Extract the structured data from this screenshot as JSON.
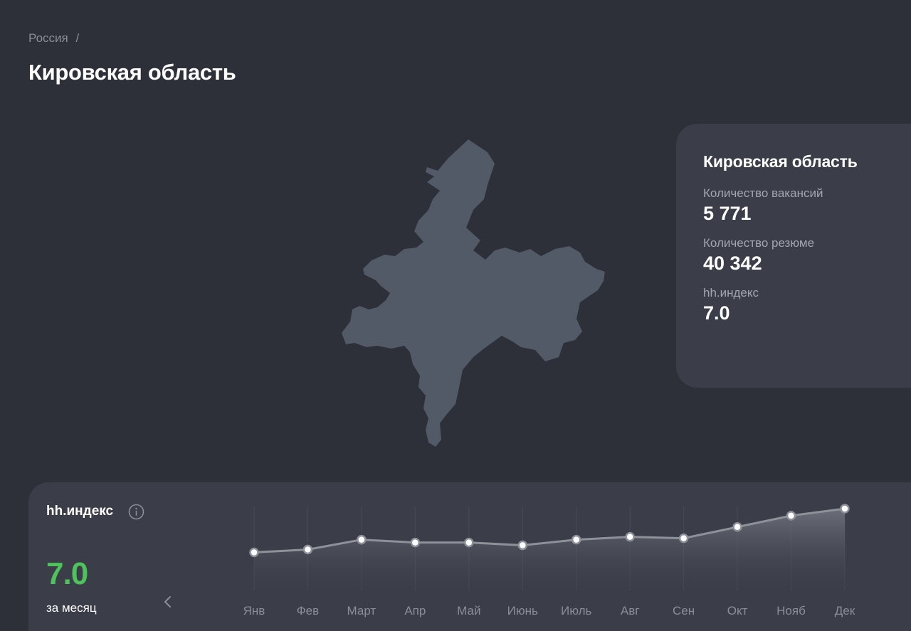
{
  "breadcrumb": {
    "items": [
      "Россия"
    ],
    "separator": "/"
  },
  "page": {
    "title": "Кировская область"
  },
  "info_card": {
    "title": "Кировская область",
    "stats": [
      {
        "label": "Количество вакансий",
        "value": "5 771"
      },
      {
        "label": "Количество резюме",
        "value": "40 342"
      },
      {
        "label": "hh.индекс",
        "value": "7.0"
      }
    ]
  },
  "index_panel": {
    "title": "hh.индекс",
    "value": "7.0",
    "period": "за месяц",
    "info_icon": "info-icon",
    "prev_icon": "chevron-left-icon"
  },
  "chart_data": {
    "type": "area",
    "categories": [
      "Янв",
      "Фев",
      "Март",
      "Апр",
      "Май",
      "Июнь",
      "Июль",
      "Авг",
      "Сен",
      "Окт",
      "Нояб",
      "Дек"
    ],
    "series": [
      {
        "values": [
          5.75,
          5.85,
          6.2,
          6.1,
          6.1,
          6.0,
          6.2,
          6.3,
          6.25,
          6.65,
          7.05,
          7.3
        ]
      }
    ],
    "grid": true,
    "line_color": "#8e9199",
    "point_color": "#ffffff"
  },
  "colors": {
    "background": "#2d3039",
    "card": "#3b3e48",
    "map_fill": "#525967",
    "accent_green": "#4fc35b",
    "muted_text": "#8a8e98"
  }
}
